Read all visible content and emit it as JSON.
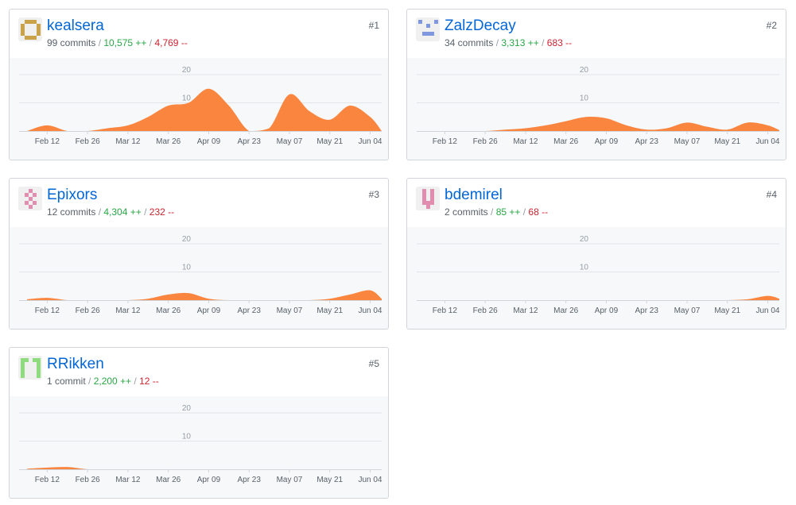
{
  "contributors": [
    {
      "username": "kealsera",
      "rank": "#1",
      "commits": "99 commits",
      "additions": "10,575 ++",
      "deletions": "4,769 --",
      "avatar_color": "#c9a24a",
      "chart_data": {
        "type": "area",
        "x": [
          "Feb 05",
          "Feb 12",
          "Feb 19",
          "Feb 26",
          "Mar 05",
          "Mar 12",
          "Mar 19",
          "Mar 26",
          "Apr 02",
          "Apr 09",
          "Apr 16",
          "Apr 23",
          "Apr 30",
          "May 07",
          "May 14",
          "May 21",
          "May 28",
          "Jun 04",
          "Jun 08"
        ],
        "values": [
          0,
          2,
          0,
          0,
          1,
          2,
          5,
          9,
          10,
          15,
          9,
          0,
          1,
          13,
          7,
          4,
          9,
          5,
          0
        ],
        "ylim": [
          0,
          20
        ],
        "yticks": [
          10,
          20
        ],
        "color": "#f9853e"
      }
    },
    {
      "username": "ZalzDecay",
      "rank": "#2",
      "commits": "34 commits",
      "additions": "3,313 ++",
      "deletions": "683 --",
      "avatar_color": "#7f97de",
      "chart_data": {
        "type": "area",
        "x": [
          "Feb 05",
          "Feb 12",
          "Feb 19",
          "Feb 26",
          "Mar 05",
          "Mar 12",
          "Mar 19",
          "Mar 26",
          "Apr 02",
          "Apr 09",
          "Apr 16",
          "Apr 23",
          "Apr 30",
          "May 07",
          "May 14",
          "May 21",
          "May 28",
          "Jun 04",
          "Jun 08"
        ],
        "values": [
          0,
          0,
          0,
          0,
          0.5,
          1,
          2,
          3.5,
          5,
          4.5,
          2,
          0.5,
          1,
          3,
          1.5,
          0.5,
          3,
          2,
          0.3
        ],
        "ylim": [
          0,
          20
        ],
        "yticks": [
          10,
          20
        ],
        "color": "#f9853e"
      }
    },
    {
      "username": "Epixors",
      "rank": "#3",
      "commits": "12 commits",
      "additions": "4,304 ++",
      "deletions": "232 --",
      "avatar_color": "#e08db0",
      "chart_data": {
        "type": "area",
        "x": [
          "Feb 05",
          "Feb 12",
          "Feb 19",
          "Feb 26",
          "Mar 05",
          "Mar 12",
          "Mar 19",
          "Mar 26",
          "Apr 02",
          "Apr 09",
          "Apr 16",
          "Apr 23",
          "Apr 30",
          "May 07",
          "May 14",
          "May 21",
          "May 28",
          "Jun 04",
          "Jun 08"
        ],
        "values": [
          0.3,
          0.8,
          0,
          0,
          0,
          0,
          0.5,
          2,
          2.5,
          0.5,
          0,
          0,
          0,
          0,
          0,
          0.5,
          2,
          3.5,
          0.5
        ],
        "ylim": [
          0,
          20
        ],
        "yticks": [
          10,
          20
        ],
        "color": "#f9853e"
      }
    },
    {
      "username": "bdemirel",
      "rank": "#4",
      "commits": "2 commits",
      "additions": "85 ++",
      "deletions": "68 --",
      "avatar_color": "#e08db0",
      "chart_data": {
        "type": "area",
        "x": [
          "Feb 05",
          "Feb 12",
          "Feb 19",
          "Feb 26",
          "Mar 05",
          "Mar 12",
          "Mar 19",
          "Mar 26",
          "Apr 02",
          "Apr 09",
          "Apr 16",
          "Apr 23",
          "Apr 30",
          "May 07",
          "May 14",
          "May 21",
          "May 28",
          "Jun 04",
          "Jun 08"
        ],
        "values": [
          0,
          0,
          0,
          0,
          0,
          0,
          0,
          0,
          0,
          0,
          0,
          0,
          0,
          0,
          0,
          0,
          0.3,
          1.5,
          0.5
        ],
        "ylim": [
          0,
          20
        ],
        "yticks": [
          10,
          20
        ],
        "color": "#f9853e"
      }
    },
    {
      "username": "RRikken",
      "rank": "#5",
      "commits": "1 commit",
      "additions": "2,200 ++",
      "deletions": "12 --",
      "avatar_color": "#8fdc7e",
      "chart_data": {
        "type": "area",
        "x": [
          "Feb 05",
          "Feb 12",
          "Feb 19",
          "Feb 26",
          "Mar 05",
          "Mar 12",
          "Mar 19",
          "Mar 26",
          "Apr 02",
          "Apr 09",
          "Apr 16",
          "Apr 23",
          "Apr 30",
          "May 07",
          "May 14",
          "May 21",
          "May 28",
          "Jun 04",
          "Jun 08"
        ],
        "values": [
          0.2,
          0.6,
          0.8,
          0,
          0,
          0,
          0,
          0,
          0,
          0,
          0,
          0,
          0,
          0,
          0,
          0,
          0,
          0,
          0
        ],
        "ylim": [
          0,
          20
        ],
        "yticks": [
          10,
          20
        ],
        "color": "#f9853e"
      }
    }
  ],
  "xaxis_labels": [
    {
      "label": "Feb 12",
      "x": "Feb 12"
    },
    {
      "label": "Feb 26",
      "x": "Feb 26"
    },
    {
      "label": "Mar 12",
      "x": "Mar 12"
    },
    {
      "label": "Mar 26",
      "x": "Mar 26"
    },
    {
      "label": "Apr 09",
      "x": "Apr 09"
    },
    {
      "label": "Apr 23",
      "x": "Apr 23"
    },
    {
      "label": "May 07",
      "x": "May 07"
    },
    {
      "label": "May 21",
      "x": "May 21"
    },
    {
      "label": "Jun 04",
      "x": "Jun 04"
    }
  ]
}
